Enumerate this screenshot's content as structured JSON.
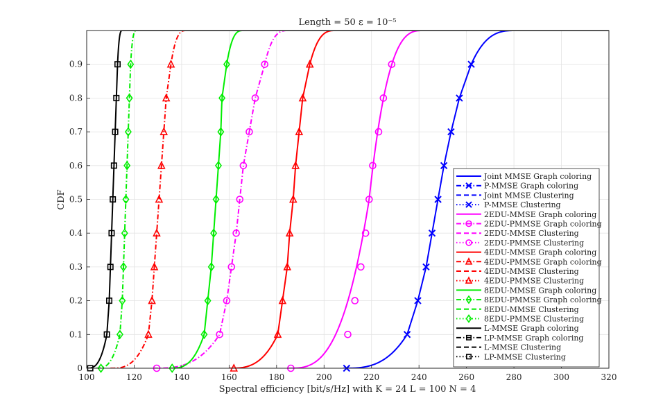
{
  "chart_data": {
    "type": "line",
    "title": "Length = 50 ε = 10⁻⁵",
    "xlabel": "Spectral efficiency [bit/s/Hz] with K = 24 L = 100 N = 4",
    "ylabel": "CDF",
    "xlim": [
      100,
      320
    ],
    "ylim": [
      0,
      1
    ],
    "x_ticks": [
      100,
      120,
      140,
      160,
      180,
      200,
      220,
      240,
      260,
      280,
      300,
      320
    ],
    "x_tick_labels": [
      "100",
      "120",
      "140",
      "160",
      "180",
      "200",
      "220",
      "240",
      "260",
      "280",
      "300",
      "320"
    ],
    "y_ticks": [
      0,
      0.1,
      0.2,
      0.3,
      0.4,
      0.5,
      0.6,
      0.7,
      0.8,
      0.9
    ],
    "y_tick_labels": [
      "0",
      "0.1",
      "0.2",
      "0.3",
      "0.4",
      "0.5",
      "0.6",
      "0.7",
      "0.8",
      "0.9"
    ],
    "grid": true,
    "legend_position": "lower-right",
    "series": [
      {
        "name": "Joint MMSE Graph coloring",
        "color": "#0000ff",
        "dash": "solid",
        "marker": "none",
        "median": 248.5,
        "spread": 9.0
      },
      {
        "name": "P-MMSE Graph coloring",
        "color": "#0000ff",
        "dash": "dashdot",
        "marker": "x",
        "median": 248.5,
        "spread": 9.0
      },
      {
        "name": "Joint MMSE Clustering",
        "color": "#0000ff",
        "dash": "dashed",
        "marker": "none",
        "median": 248.5,
        "spread": 9.0
      },
      {
        "name": "P-MMSE Clustering",
        "color": "#0000ff",
        "dash": "dotted",
        "marker": "x",
        "median": 248.5,
        "spread": 9.0
      },
      {
        "name": "2EDU-MMSE Graph coloring",
        "color": "#ff00ff",
        "dash": "solid",
        "marker": "none",
        "median": 219.0,
        "spread": 7.0
      },
      {
        "name": "2EDU-PMMSE Graph coloring",
        "color": "#ff00ff",
        "dash": "dashdot",
        "marker": "o",
        "median": 219.0,
        "spread": 7.0
      },
      {
        "name": "2EDU-MMSE Clustering",
        "color": "#ff00ff",
        "dash": "dashed",
        "marker": "none",
        "median": 219.0,
        "spread": 7.0
      },
      {
        "name": "2EDU-PMMSE Clustering",
        "color": "#ff00ff",
        "dash": "dotted",
        "marker": "o",
        "median": 219.0,
        "spread": 7.0
      },
      {
        "name": "4EDU-MMSE Graph coloring",
        "color": "#ff0000",
        "dash": "solid",
        "marker": "none",
        "median": 187.5,
        "spread": 5.0
      },
      {
        "name": "4EDU-PMMSE Graph coloring",
        "color": "#ff0000",
        "dash": "dashdot",
        "marker": "^",
        "median": 130.0,
        "spread": 3.5
      },
      {
        "name": "4EDU-MMSE Clustering",
        "color": "#ff0000",
        "dash": "dashed",
        "marker": "none",
        "median": 187.5,
        "spread": 5.0
      },
      {
        "name": "4EDU-PMMSE Clustering",
        "color": "#ff0000",
        "dash": "dotted",
        "marker": "^",
        "median": 130.0,
        "spread": 3.5
      },
      {
        "name": "8EDU-MMSE Graph coloring",
        "color": "#00ee00",
        "dash": "solid",
        "marker": "none",
        "median": 154.5,
        "spread": 3.5
      },
      {
        "name": "8EDU-PMMSE Graph coloring",
        "color": "#00ee00",
        "dash": "dashdot",
        "marker": "d",
        "median": 116.0,
        "spread": 1.5
      },
      {
        "name": "8EDU-MMSE Clustering",
        "color": "#00ee00",
        "dash": "dashed",
        "marker": "none",
        "median": 154.5,
        "spread": 3.5
      },
      {
        "name": "8EDU-PMMSE Clustering",
        "color": "#00ee00",
        "dash": "dotted",
        "marker": "d",
        "median": 116.0,
        "spread": 1.5
      },
      {
        "name": "L-MMSE Graph coloring",
        "color": "#000000",
        "dash": "solid",
        "marker": "none",
        "median": 111.0,
        "spread": 1.5
      },
      {
        "name": "LP-MMSE Graph coloring",
        "color": "#000000",
        "dash": "dashdot",
        "marker": "s",
        "median": 111.0,
        "spread": 1.5
      },
      {
        "name": "L-MMSE Clustering",
        "color": "#000000",
        "dash": "dashed",
        "marker": "none",
        "median": 111.0,
        "spread": 1.5
      },
      {
        "name": "LP-MMSE Clustering",
        "color": "#000000",
        "dash": "dotted",
        "marker": "s",
        "median": 111.0,
        "spread": 1.5
      }
    ],
    "curves": [
      {
        "color": "#0000ff",
        "dash": "solid",
        "marker": "x",
        "x0": 208,
        "x1": 281,
        "marker_points": [
          [
            209.5,
            0
          ],
          [
            235,
            0.1
          ],
          [
            239.5,
            0.2
          ],
          [
            243,
            0.3
          ],
          [
            245.5,
            0.4
          ],
          [
            248,
            0.5
          ],
          [
            250.5,
            0.6
          ],
          [
            253.5,
            0.7
          ],
          [
            257,
            0.8
          ],
          [
            262,
            0.9
          ]
        ]
      },
      {
        "color": "#ff00ff",
        "dash": "solid",
        "marker": "none",
        "x0": 185,
        "x1": 242,
        "marker_points": [
          [
            219,
            0.5
          ]
        ]
      },
      {
        "color": "#ff00ff",
        "dash": "none",
        "marker": "o",
        "x0": 0,
        "x1": 0,
        "marker_points": [
          [
            186,
            0
          ],
          [
            210,
            0.1
          ],
          [
            213,
            0.2
          ],
          [
            215.5,
            0.3
          ],
          [
            217.5,
            0.4
          ],
          [
            219,
            0.5
          ],
          [
            220.5,
            0.6
          ],
          [
            223,
            0.7
          ],
          [
            225,
            0.8
          ],
          [
            228.5,
            0.9
          ]
        ]
      },
      {
        "color": "#ff00ff",
        "dash": "dashdot",
        "marker": "o",
        "x0": 128,
        "x1": 185,
        "marker_points": [
          [
            129.5,
            0
          ],
          [
            156,
            0.1
          ],
          [
            159,
            0.2
          ],
          [
            161,
            0.3
          ],
          [
            163,
            0.4
          ],
          [
            164.5,
            0.5
          ],
          [
            166,
            0.6
          ],
          [
            168.5,
            0.7
          ],
          [
            171,
            0.8
          ],
          [
            175,
            0.9
          ]
        ]
      },
      {
        "color": "#ff0000",
        "dash": "solid",
        "marker": "^",
        "x0": 160,
        "x1": 205,
        "marker_points": [
          [
            162,
            0
          ],
          [
            180.5,
            0.1
          ],
          [
            182.5,
            0.2
          ],
          [
            184.5,
            0.3
          ],
          [
            185.5,
            0.4
          ],
          [
            187,
            0.5
          ],
          [
            188,
            0.6
          ],
          [
            189.5,
            0.7
          ],
          [
            191,
            0.8
          ],
          [
            194,
            0.9
          ]
        ]
      },
      {
        "color": "#ff0000",
        "dash": "dashdot",
        "marker": "^",
        "x0": 110,
        "x1": 142,
        "marker_points": [
          [
            126,
            0.1
          ],
          [
            127.5,
            0.2
          ],
          [
            128.5,
            0.3
          ],
          [
            129.5,
            0.4
          ],
          [
            130.5,
            0.5
          ],
          [
            131.5,
            0.6
          ],
          [
            132.5,
            0.7
          ],
          [
            133.5,
            0.8
          ],
          [
            135.5,
            0.9
          ]
        ]
      },
      {
        "color": "#00ee00",
        "dash": "solid",
        "marker": "d",
        "x0": 135,
        "x1": 166,
        "marker_points": [
          [
            136,
            0
          ],
          [
            149.5,
            0.1
          ],
          [
            151,
            0.2
          ],
          [
            152.5,
            0.3
          ],
          [
            153.5,
            0.4
          ],
          [
            154.5,
            0.5
          ],
          [
            155.5,
            0.6
          ],
          [
            156.5,
            0.7
          ],
          [
            157,
            0.8
          ],
          [
            159,
            0.9
          ]
        ]
      },
      {
        "color": "#00ee00",
        "dash": "dashdot",
        "marker": "d",
        "x0": 104,
        "x1": 121,
        "marker_points": [
          [
            106,
            0
          ],
          [
            114,
            0.1
          ],
          [
            115,
            0.2
          ],
          [
            115.5,
            0.3
          ],
          [
            116,
            0.4
          ],
          [
            116.5,
            0.5
          ],
          [
            117,
            0.6
          ],
          [
            117.5,
            0.7
          ],
          [
            118,
            0.8
          ],
          [
            118.5,
            0.9
          ]
        ]
      },
      {
        "color": "#000000",
        "dash": "solid",
        "marker": "s",
        "x0": 100,
        "x1": 115,
        "marker_points": [
          [
            101.5,
            0
          ],
          [
            108.5,
            0.1
          ],
          [
            109.5,
            0.2
          ],
          [
            110,
            0.3
          ],
          [
            110.5,
            0.4
          ],
          [
            111,
            0.5
          ],
          [
            111.5,
            0.6
          ],
          [
            112,
            0.7
          ],
          [
            112.5,
            0.8
          ],
          [
            113,
            0.9
          ]
        ]
      }
    ]
  }
}
